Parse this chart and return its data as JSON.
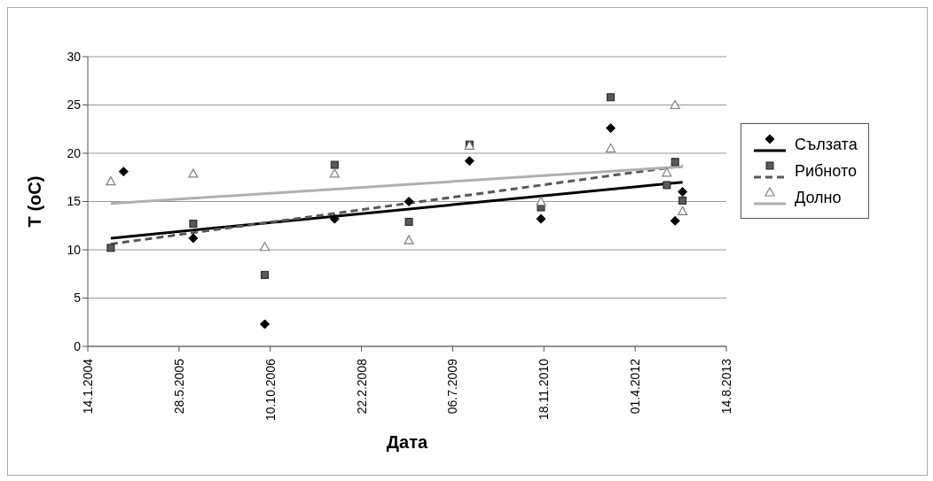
{
  "chart_data": {
    "type": "scatter",
    "xlabel": "Дата",
    "ylabel": "T (oC)",
    "xlim": [
      "2004-01-14",
      "2013-08-14"
    ],
    "xticks": [
      {
        "value": "2004-01-14",
        "label": "14.1.2004"
      },
      {
        "value": "2005-05-28",
        "label": "28.5.2005"
      },
      {
        "value": "2006-10-10",
        "label": "10.10.2006"
      },
      {
        "value": "2008-02-22",
        "label": "22.2.2008"
      },
      {
        "value": "2009-07-06",
        "label": "06.7.2009"
      },
      {
        "value": "2010-11-18",
        "label": "18.11.2010"
      },
      {
        "value": "2012-04-01",
        "label": "01.4.2012"
      },
      {
        "value": "2013-08-14",
        "label": "14.8.2013"
      }
    ],
    "ylim": [
      0,
      30
    ],
    "yticks": [
      0,
      5,
      10,
      15,
      20,
      25,
      30
    ],
    "grid": "y",
    "legend": "right",
    "series": [
      {
        "name": "Сълзата",
        "marker": "diamond",
        "color": "#000000",
        "x": [
          "2004-07-28",
          "2005-08-14",
          "2006-09-10",
          "2007-09-28",
          "2008-11-08",
          "2009-10-06",
          "2010-11-02",
          "2011-11-19",
          "2012-11-06",
          "2012-12-17"
        ],
        "values": [
          18.1,
          11.2,
          2.3,
          13.2,
          15.0,
          19.2,
          13.2,
          22.6,
          13.0,
          16.0
        ]
      },
      {
        "name": "Рибното",
        "marker": "square",
        "color": "#595959",
        "x": [
          "2004-05-19",
          "2005-08-14",
          "2006-09-10",
          "2007-09-28",
          "2008-11-08",
          "2009-10-06",
          "2010-11-02",
          "2011-11-19",
          "2012-09-22",
          "2012-11-06",
          "2012-12-17"
        ],
        "values": [
          10.2,
          12.7,
          7.4,
          18.8,
          12.9,
          20.9,
          14.4,
          25.8,
          16.7,
          19.1,
          15.1
        ]
      },
      {
        "name": "Долно",
        "marker": "triangle",
        "color": "#808080",
        "x": [
          "2004-05-19",
          "2005-08-14",
          "2006-09-10",
          "2007-09-28",
          "2008-11-08",
          "2009-10-06",
          "2010-11-02",
          "2011-11-19",
          "2012-09-22",
          "2012-11-06",
          "2012-12-17"
        ],
        "values": [
          17.1,
          17.9,
          10.3,
          17.9,
          11.0,
          20.8,
          15.0,
          20.5,
          18.0,
          25.0,
          14.0
        ]
      },
      {
        "type": "line",
        "marker": "none",
        "line_style": "solid",
        "color": "#000000",
        "x": [
          "2004-05-19",
          "2012-12-17"
        ],
        "values": [
          11.2,
          17.0
        ]
      },
      {
        "type": "line",
        "marker": "none",
        "line_style": "dashed",
        "color": "#595959",
        "x": [
          "2004-05-19",
          "2012-12-17"
        ],
        "values": [
          10.6,
          18.7
        ]
      },
      {
        "type": "line",
        "marker": "none",
        "line_style": "solid",
        "color": "#b0b0b0",
        "x": [
          "2004-05-19",
          "2012-12-17"
        ],
        "values": [
          14.8,
          18.6
        ]
      }
    ]
  }
}
